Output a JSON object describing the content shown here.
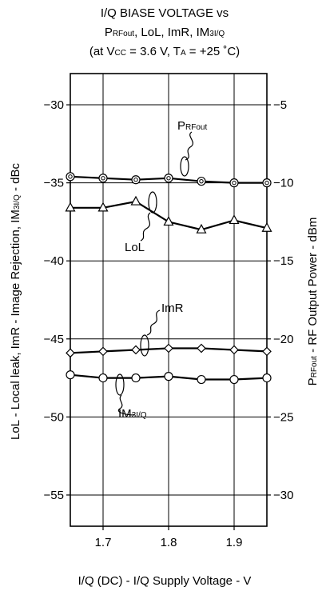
{
  "chart_data": {
    "type": "line",
    "title_line1": "I/Q BIASE VOLTAGE vs",
    "title_line2": {
      "p": "P",
      "p_sub": "RFout",
      "rest": ", LoL, ImR, IM",
      "im_sub": "3I/Q"
    },
    "title_line3": {
      "a": "(at V",
      "vcc_sub": "CC",
      "b": " = 3.6 V, T",
      "ta_sub": "A",
      "c": " = +25 ˚C)"
    },
    "xlabel": "I/Q (DC) - I/Q Supply Voltage - V",
    "ylabel_left": {
      "before": "LoL - Local leak, ImR - Image Rejection, IM",
      "sub": "3I/Q",
      "after": " - dBc"
    },
    "ylabel_right": {
      "main": "P",
      "sub": "RFout",
      "after": " - RF Output Power - dBm"
    },
    "xlim": [
      1.65,
      1.95
    ],
    "x_ticks": [
      "1.7",
      "1.8",
      "1.9"
    ],
    "x_tick_values": [
      1.7,
      1.8,
      1.9
    ],
    "ylim_left": [
      -57,
      -28
    ],
    "y_ticks_left": [
      "−30",
      "−35",
      "−40",
      "−45",
      "−50",
      "−55"
    ],
    "y_tick_values_left": [
      -30,
      -35,
      -40,
      -45,
      -50,
      -55
    ],
    "ylim_right": [
      -32,
      -3
    ],
    "y_ticks_right": [
      "−5",
      "−10",
      "−15",
      "−20",
      "−25",
      "−30"
    ],
    "y_tick_values_right": [
      -5,
      -10,
      -15,
      -20,
      -25,
      -30
    ],
    "grid": true,
    "series": [
      {
        "name": "P",
        "name_sub": "RFout",
        "axis": "right",
        "marker": "double-circle",
        "x": [
          1.65,
          1.7,
          1.75,
          1.8,
          1.85,
          1.9,
          1.95
        ],
        "values": [
          -9.6,
          -9.7,
          -9.8,
          -9.7,
          -9.9,
          -10.0,
          -10.0
        ]
      },
      {
        "name": "LoL",
        "name_sub": "",
        "axis": "left",
        "marker": "triangle",
        "x": [
          1.65,
          1.7,
          1.75,
          1.8,
          1.85,
          1.9,
          1.95
        ],
        "values": [
          -36.6,
          -36.6,
          -36.2,
          -37.5,
          -38.0,
          -37.4,
          -37.9
        ]
      },
      {
        "name": "ImR",
        "name_sub": "",
        "axis": "left",
        "marker": "diamond",
        "x": [
          1.65,
          1.7,
          1.75,
          1.8,
          1.85,
          1.9,
          1.95
        ],
        "values": [
          -45.9,
          -45.8,
          -45.7,
          -45.6,
          -45.6,
          -45.7,
          -45.8
        ]
      },
      {
        "name": "IM",
        "name_sub": "3I/Q",
        "axis": "left",
        "marker": "circle",
        "x": [
          1.65,
          1.7,
          1.75,
          1.8,
          1.85,
          1.9,
          1.95
        ],
        "values": [
          -47.3,
          -47.5,
          -47.5,
          -47.4,
          -47.6,
          -47.6,
          -47.5
        ]
      }
    ]
  }
}
